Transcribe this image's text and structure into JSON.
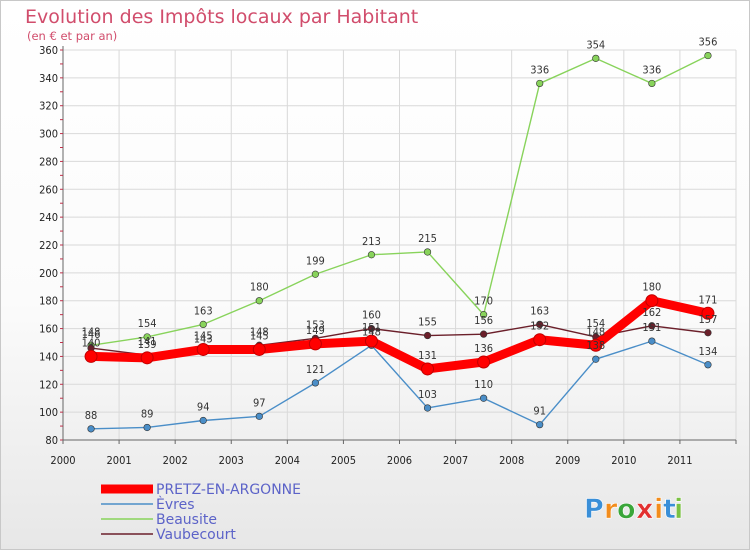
{
  "chart_data": {
    "type": "line",
    "title": "Evolution des Impôts locaux par Habitant",
    "subtitle": "(en € et par an)",
    "categories": [
      "2000",
      "2001",
      "2002",
      "2003",
      "2004",
      "2005",
      "2006",
      "2007",
      "2008",
      "2009",
      "2010",
      "2011"
    ],
    "ylim": [
      80,
      360
    ],
    "yticks": [
      80,
      100,
      120,
      140,
      160,
      180,
      200,
      220,
      240,
      260,
      280,
      300,
      320,
      340,
      360
    ],
    "grid": true,
    "legend_position": "bottom-left",
    "series": [
      {
        "name": "PRETZ-EN-ARGONNE",
        "color": "#ff0000",
        "values": [
          140,
          139,
          145,
          145,
          149,
          151,
          131,
          136,
          152,
          148,
          180,
          171
        ]
      },
      {
        "name": "Èvres",
        "color": "#4a8ec8",
        "values": [
          88,
          89,
          94,
          97,
          121,
          148,
          103,
          110,
          91,
          138,
          151,
          134
        ]
      },
      {
        "name": "Beausite",
        "color": "#88d35b",
        "values": [
          148,
          154,
          163,
          180,
          199,
          213,
          215,
          170,
          336,
          354,
          336,
          356
        ]
      },
      {
        "name": "Vaubecourt",
        "color": "#6b1f2a",
        "values": [
          146,
          141,
          143,
          148,
          153,
          160,
          155,
          156,
          163,
          154,
          162,
          157
        ]
      }
    ]
  },
  "branding": {
    "logo_letters": [
      "P",
      "r",
      "o",
      "x",
      "i",
      "t",
      "i"
    ],
    "logo_colors": [
      "#3a8fd8",
      "#f28c1c",
      "#3aa63a",
      "#e23030",
      "#f28c1c",
      "#3a8fd8",
      "#7ac143"
    ]
  }
}
